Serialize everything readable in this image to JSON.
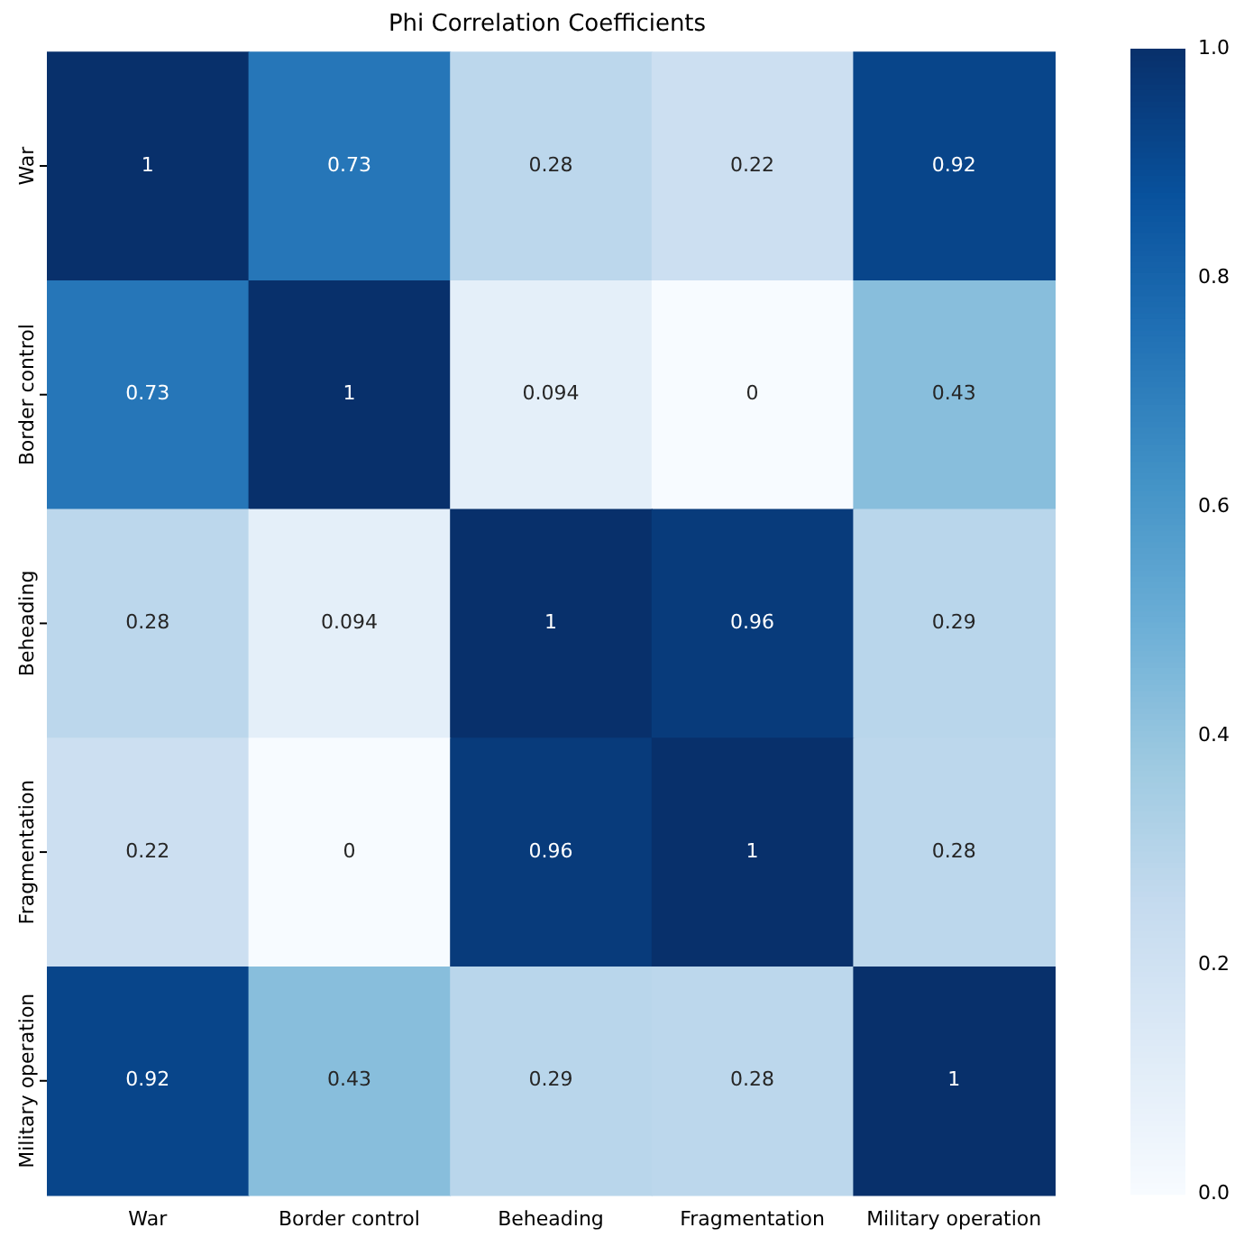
{
  "chart_data": {
    "type": "heatmap",
    "title": "Phi Correlation Coefficients",
    "categories": [
      "War",
      "Border control",
      "Beheading",
      "Fragmentation",
      "Military operation"
    ],
    "y_categories": [
      "War",
      "Border control",
      "Beheading",
      "Fragmentation",
      "Military operation"
    ],
    "cells": [
      [
        1,
        0.73,
        0.28,
        0.22,
        0.92
      ],
      [
        0.73,
        1,
        0.094,
        0,
        0.43
      ],
      [
        0.28,
        0.094,
        1,
        0.96,
        0.29
      ],
      [
        0.22,
        0,
        0.96,
        1,
        0.28
      ],
      [
        0.92,
        0.43,
        0.29,
        0.28,
        1
      ]
    ],
    "clim": [
      0,
      1
    ],
    "cticks": [
      {
        "value": 0,
        "label": "0.0"
      },
      {
        "value": 0.2,
        "label": "0.2"
      },
      {
        "value": 0.4,
        "label": "0.4"
      },
      {
        "value": 0.6,
        "label": "0.6"
      },
      {
        "value": 0.8,
        "label": "0.8"
      },
      {
        "value": 1,
        "label": "1.0"
      }
    ],
    "data_labels": true
  }
}
